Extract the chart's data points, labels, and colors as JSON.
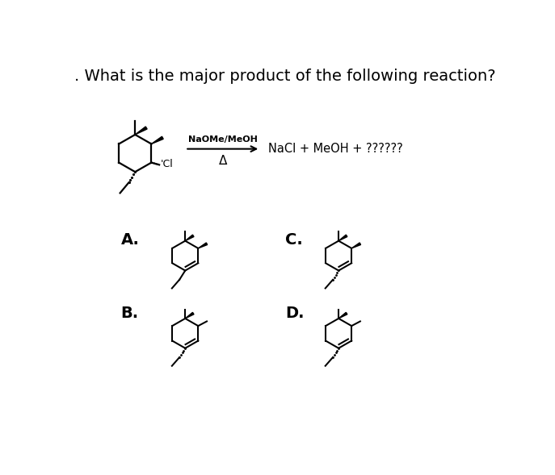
{
  "title": ". What is the major product of the following reaction?",
  "title_fontsize": 14,
  "background_color": "#ffffff",
  "text_color": "#000000",
  "reagent_above": "NaOMe/MeOH",
  "reagent_below": "Δ",
  "products_text": "NaCl + MeOH + ??????",
  "label_A": "A.",
  "label_B": "B.",
  "label_C": "C.",
  "label_D": "D."
}
